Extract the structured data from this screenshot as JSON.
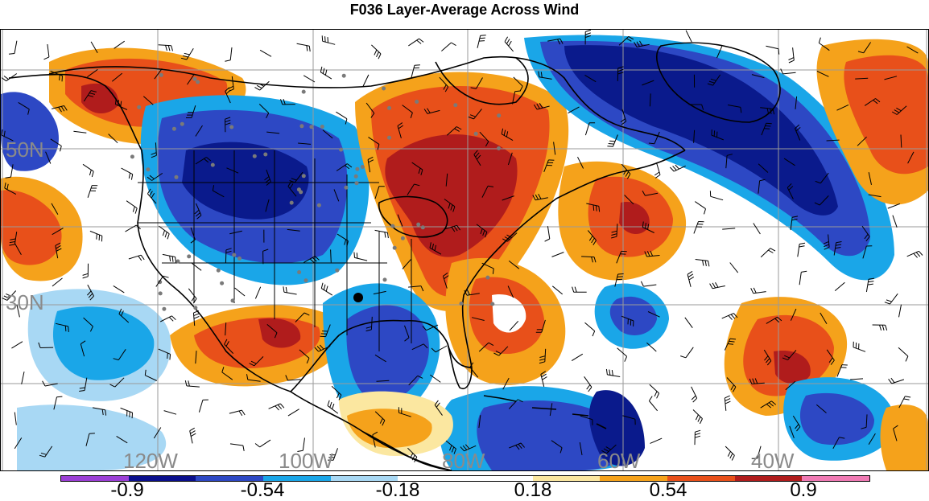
{
  "title": "F036 Layer-Average Across Wind",
  "lat_labels": [
    "50N",
    "30N"
  ],
  "lon_labels": [
    "120W",
    "100W",
    "80W",
    "60W",
    "40W"
  ],
  "colorbar": {
    "colors": [
      "#9b3fd6",
      "#0a0f8c",
      "#2d48c4",
      "#1aa6e8",
      "#a8d8f4",
      "#ffffff",
      "#ffffff",
      "#fbe7a0",
      "#f5a21b",
      "#e8501a",
      "#b01c1c",
      "#f07ab4"
    ],
    "labels": [
      "-0.9",
      "-0.54",
      "-0.18",
      "0.18",
      "0.54",
      "0.9"
    ]
  },
  "map_colors": {
    "deep_blue": "#0a1a8c",
    "blue": "#2d48c4",
    "sky": "#1aa6e8",
    "light_blue": "#a8d8f4",
    "pale_yellow": "#fbe7a0",
    "orange": "#f5a21b",
    "red_orange": "#e8501a",
    "dark_red": "#b01c1c",
    "grid": "#9a9a9a",
    "coast": "#000000",
    "station_dot": "#7a7a7a"
  }
}
